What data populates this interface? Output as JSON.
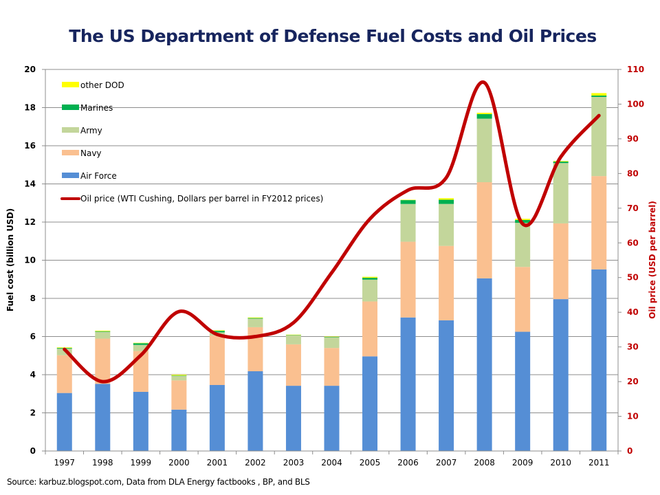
{
  "chart_data": {
    "type": "bar",
    "subtype": "stacked-bar-with-line-secondary-axis",
    "title": "The US Department of Defense Fuel Costs and Oil Prices",
    "source": "Source: karbuz.blogspot.com, Data from DLA Energy factbooks ,  BP, and BLS",
    "xlabel": "",
    "ylabel": "Fuel cost (billion USD)",
    "ylabel_right": "Oil price (USD per barrel)",
    "ylim": [
      0,
      20
    ],
    "yticks": [
      0,
      2,
      4,
      6,
      8,
      10,
      12,
      14,
      16,
      18,
      20
    ],
    "ylim_right": [
      0,
      110
    ],
    "yticks_right": [
      0,
      10,
      20,
      30,
      40,
      50,
      60,
      70,
      80,
      90,
      100,
      110
    ],
    "grid": true,
    "legend_position": "top-left",
    "categories": [
      "1997",
      "1998",
      "1999",
      "2000",
      "2001",
      "2002",
      "2003",
      "2004",
      "2005",
      "2006",
      "2007",
      "2008",
      "2009",
      "2010",
      "2011"
    ],
    "series": [
      {
        "name": "Air Force",
        "type": "bar",
        "axis": "left",
        "color": "#558ed5",
        "values": [
          3.04,
          3.52,
          3.1,
          2.17,
          3.46,
          4.18,
          3.42,
          3.42,
          4.96,
          7.0,
          6.85,
          9.05,
          6.25,
          7.96,
          9.52
        ]
      },
      {
        "name": "Navy",
        "type": "bar",
        "axis": "left",
        "color": "#fac090",
        "values": [
          1.98,
          2.37,
          2.14,
          1.53,
          2.59,
          2.31,
          2.17,
          1.98,
          2.88,
          3.97,
          3.9,
          5.04,
          3.4,
          3.97,
          4.89
        ]
      },
      {
        "name": "Army",
        "type": "bar",
        "axis": "left",
        "color": "#c3d69b",
        "values": [
          0.34,
          0.36,
          0.32,
          0.24,
          0.17,
          0.45,
          0.48,
          0.56,
          1.14,
          1.98,
          2.2,
          3.33,
          2.31,
          3.16,
          4.15
        ]
      },
      {
        "name": "Marines",
        "type": "bar",
        "axis": "left",
        "color": "#00b050",
        "values": [
          0.04,
          0.03,
          0.09,
          0.02,
          0.08,
          0.03,
          0.02,
          0.02,
          0.1,
          0.2,
          0.22,
          0.24,
          0.15,
          0.08,
          0.07
        ]
      },
      {
        "name": "other DOD",
        "type": "bar",
        "axis": "left",
        "color": "#ffff00",
        "values": [
          0.03,
          0.03,
          0.02,
          0.04,
          0.03,
          0.03,
          0.01,
          0.02,
          0.05,
          0.02,
          0.08,
          0.07,
          0.06,
          0.03,
          0.13
        ]
      },
      {
        "name": "Oil price (WTI Cushing, Dollars per barrel in FY2012 prices)",
        "type": "line",
        "axis": "right",
        "color": "#c00000",
        "values": [
          29.3,
          20.0,
          27.6,
          40.2,
          33.6,
          33.0,
          37.0,
          51.4,
          66.9,
          75.2,
          78.8,
          106.2,
          65.5,
          84.8,
          96.7
        ]
      }
    ],
    "legend": [
      {
        "label": "other DOD",
        "color": "#ffff00",
        "kind": "box"
      },
      {
        "label": "Marines",
        "color": "#00b050",
        "kind": "box"
      },
      {
        "label": "Army",
        "color": "#c3d69b",
        "kind": "box"
      },
      {
        "label": "Navy",
        "color": "#fac090",
        "kind": "box"
      },
      {
        "label": "Air Force",
        "color": "#558ed5",
        "kind": "box"
      },
      {
        "label": "Oil price (WTI Cushing, Dollars per barrel in FY2012 prices)",
        "color": "#c00000",
        "kind": "line"
      }
    ]
  }
}
